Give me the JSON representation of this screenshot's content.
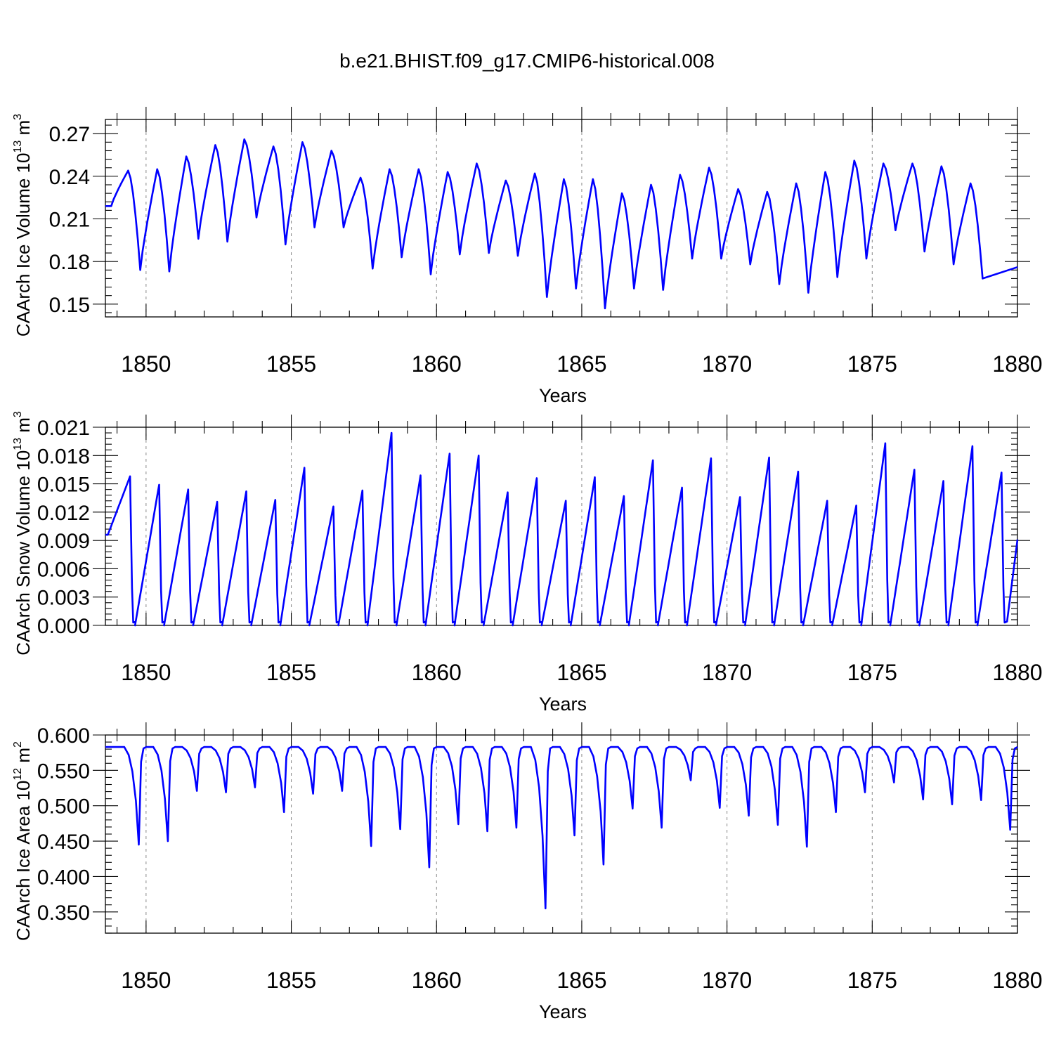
{
  "figure": {
    "title": "b.e21.BHIST.f09_g17.CMIP6-historical.008"
  },
  "chart_data": [
    {
      "type": "line",
      "ylabel": "CAArch Ice Volume 10",
      "ylabel_exp": "13",
      "ylabel_unit": " m",
      "ylabel_unit_exp": "3",
      "xlabel": "Years",
      "xlim": [
        1848.6,
        1880
      ],
      "ylim": [
        0.141,
        0.28
      ],
      "x_ticks": [
        1850,
        1855,
        1860,
        1865,
        1870,
        1875,
        1880
      ],
      "x_tick_labels": [
        "1850",
        "1855",
        "1860",
        "1865",
        "1870",
        "1875",
        "1880"
      ],
      "y_ticks": [
        0.15,
        0.18,
        0.21,
        0.24,
        0.27
      ],
      "y_tick_labels": [
        "0.15",
        "0.18",
        "0.21",
        "0.24",
        "0.27"
      ],
      "y_minor": 0.006,
      "series": [
        {
          "name": "CAArch Ice Volume",
          "x_start": 1848.6,
          "step": 0.08333,
          "annual_max": [
            0.244,
            0.245,
            0.254,
            0.262,
            0.266,
            0.261,
            0.264,
            0.258,
            0.239,
            0.245,
            0.245,
            0.243,
            0.249,
            0.237,
            0.242,
            0.238,
            0.238,
            0.228,
            0.234,
            0.241,
            0.246,
            0.231,
            0.229,
            0.235,
            0.243,
            0.251,
            0.249,
            0.249,
            0.247,
            0.235
          ],
          "annual_min": [
            0.174,
            0.173,
            0.196,
            0.194,
            0.211,
            0.192,
            0.204,
            0.204,
            0.175,
            0.183,
            0.171,
            0.185,
            0.186,
            0.184,
            0.155,
            0.161,
            0.147,
            0.161,
            0.16,
            0.182,
            0.182,
            0.178,
            0.164,
            0.158,
            0.169,
            0.182,
            0.202,
            0.187,
            0.178,
            0.168
          ],
          "start_value": 0.219,
          "end_value": 0.176
        }
      ]
    },
    {
      "type": "line",
      "ylabel": "CAArch Snow Volume 10",
      "ylabel_exp": "13",
      "ylabel_unit": " m",
      "ylabel_unit_exp": "3",
      "xlabel": "Years",
      "xlim": [
        1848.6,
        1880
      ],
      "ylim": [
        0.0,
        0.021
      ],
      "x_ticks": [
        1850,
        1855,
        1860,
        1865,
        1870,
        1875,
        1880
      ],
      "x_tick_labels": [
        "1850",
        "1855",
        "1860",
        "1865",
        "1870",
        "1875",
        "1880"
      ],
      "y_ticks": [
        0.0,
        0.003,
        0.006,
        0.009,
        0.012,
        0.015,
        0.018,
        0.021
      ],
      "y_tick_labels": [
        "0.000",
        "0.003",
        "0.006",
        "0.009",
        "0.012",
        "0.015",
        "0.018",
        "0.021"
      ],
      "y_minor": 0.0006,
      "series": [
        {
          "name": "CAArch Snow Volume",
          "x_start": 1848.6,
          "step": 0.08333,
          "annual_max": [
            0.0158,
            0.0149,
            0.0144,
            0.0131,
            0.0142,
            0.0133,
            0.0167,
            0.0126,
            0.0143,
            0.0204,
            0.0159,
            0.0182,
            0.018,
            0.0141,
            0.0156,
            0.0132,
            0.0157,
            0.0137,
            0.0175,
            0.0146,
            0.0177,
            0.0136,
            0.0178,
            0.0163,
            0.0132,
            0.0127,
            0.0193,
            0.0165,
            0.0153,
            0.019,
            0.0162
          ],
          "start_value": 0.0096,
          "end_value": 0.0091
        }
      ]
    },
    {
      "type": "line",
      "ylabel": "CAArch Ice Area 10",
      "ylabel_exp": "12",
      "ylabel_unit": " m",
      "ylabel_unit_exp": "2",
      "xlabel": "Years",
      "xlim": [
        1848.6,
        1880
      ],
      "ylim": [
        0.32,
        0.6
      ],
      "x_ticks": [
        1850,
        1855,
        1860,
        1865,
        1870,
        1875,
        1880
      ],
      "x_tick_labels": [
        "1850",
        "1855",
        "1860",
        "1865",
        "1870",
        "1875",
        "1880"
      ],
      "y_ticks": [
        0.35,
        0.4,
        0.45,
        0.5,
        0.55,
        0.6
      ],
      "y_tick_labels": [
        "0.350",
        "0.400",
        "0.450",
        "0.500",
        "0.550",
        "0.600"
      ],
      "y_minor": 0.01,
      "series": [
        {
          "name": "CAArch Ice Area",
          "x_start": 1848.6,
          "step": 0.08333,
          "plateau": 0.583,
          "annual_min": [
            0.445,
            0.45,
            0.521,
            0.519,
            0.526,
            0.491,
            0.517,
            0.521,
            0.443,
            0.467,
            0.413,
            0.474,
            0.464,
            0.469,
            0.355,
            0.458,
            0.417,
            0.496,
            0.469,
            0.536,
            0.497,
            0.486,
            0.473,
            0.442,
            0.491,
            0.519,
            0.533,
            0.509,
            0.502,
            0.508,
            0.466
          ],
          "end_value": 0.583
        }
      ]
    }
  ]
}
